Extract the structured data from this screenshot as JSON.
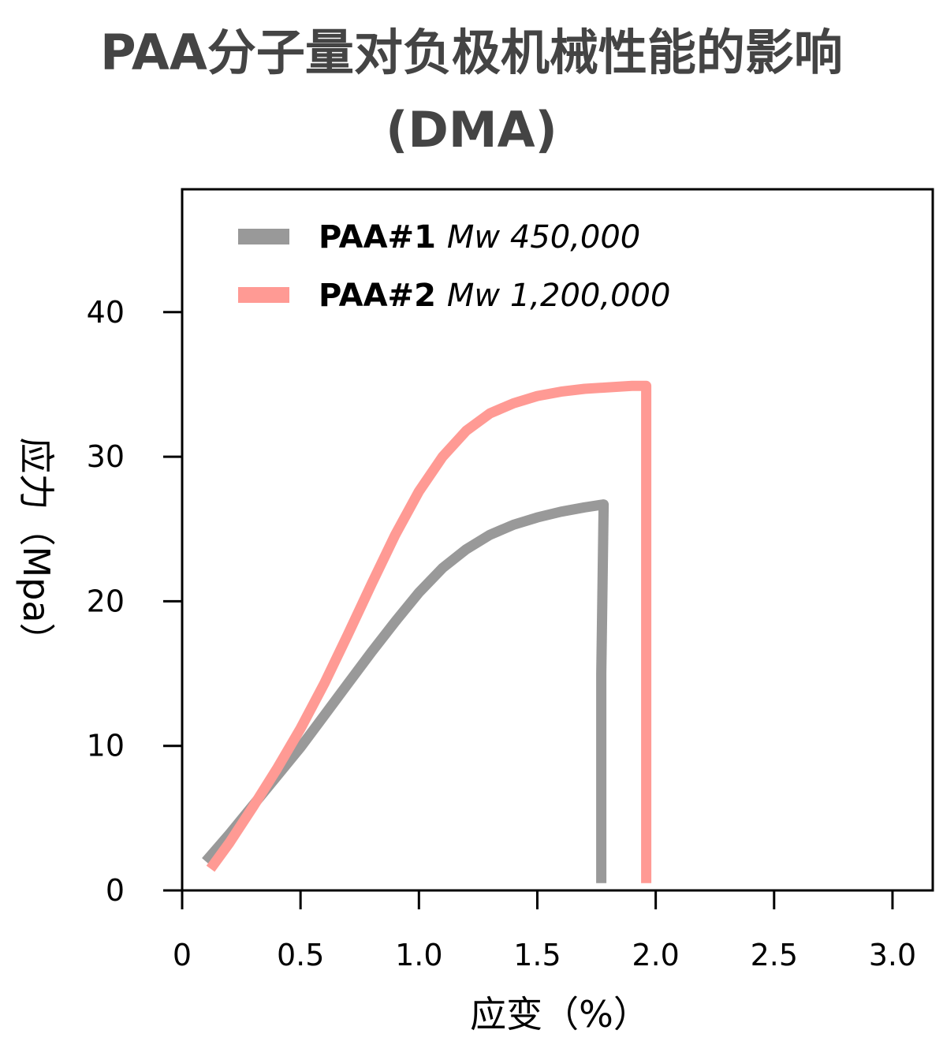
{
  "chart_data": {
    "type": "line",
    "title": "PAA分子量对负极机械性能的影响",
    "subtitle": "(DMA)",
    "xlabel": "应变（%）",
    "ylabel": "应力（Mpa）",
    "xlim": [
      0,
      3.17
    ],
    "ylim": [
      0,
      48.5
    ],
    "xticks": [
      0,
      0.5,
      1.0,
      1.5,
      2.0,
      2.5,
      3.0
    ],
    "xtick_labels": [
      "0",
      "0.5",
      "1.0",
      "1.5",
      "2.0",
      "2.5",
      "3.0"
    ],
    "yticks": [
      0,
      10,
      20,
      30,
      40
    ],
    "ytick_labels": [
      "0",
      "10",
      "20",
      "30",
      "40"
    ],
    "grid": false,
    "legend_position": "top-left",
    "series": [
      {
        "name": "PAA#1",
        "name_suffix": "Mw 450,000",
        "color": "#999999",
        "x": [
          0.1,
          0.2,
          0.3,
          0.4,
          0.5,
          0.6,
          0.7,
          0.8,
          0.9,
          1.0,
          1.1,
          1.2,
          1.3,
          1.4,
          1.5,
          1.6,
          1.7,
          1.78,
          1.77,
          1.77
        ],
        "y": [
          2.0,
          3.9,
          5.9,
          7.9,
          9.9,
          12.1,
          14.3,
          16.5,
          18.6,
          20.6,
          22.3,
          23.6,
          24.6,
          25.3,
          25.8,
          26.2,
          26.5,
          26.7,
          15.0,
          0.5
        ]
      },
      {
        "name": "PAA#2",
        "name_suffix": "Mw 1,200,000",
        "color": "#ff9a94",
        "x": [
          0.12,
          0.2,
          0.3,
          0.4,
          0.5,
          0.6,
          0.7,
          0.8,
          0.9,
          1.0,
          1.1,
          1.2,
          1.3,
          1.4,
          1.5,
          1.6,
          1.7,
          1.8,
          1.9,
          1.96,
          1.96,
          1.96
        ],
        "y": [
          1.5,
          3.3,
          5.8,
          8.4,
          11.2,
          14.3,
          17.7,
          21.2,
          24.6,
          27.6,
          30.0,
          31.8,
          33.0,
          33.7,
          34.2,
          34.5,
          34.7,
          34.8,
          34.9,
          34.9,
          18.0,
          0.5
        ]
      }
    ]
  }
}
